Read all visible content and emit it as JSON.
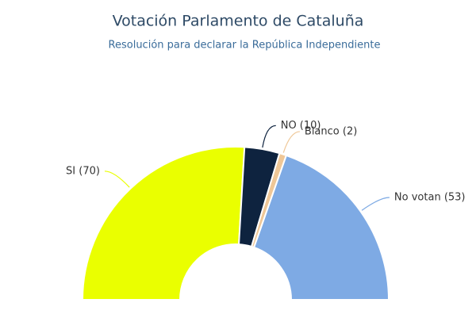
{
  "chart_data": {
    "type": "pie",
    "title": "Votación Parlamento de Cataluña",
    "subtitle": "Resolución para declarar la República Independiente",
    "values": [
      70,
      10,
      2,
      53
    ],
    "value_labels": [
      "SI (70)",
      "NO (10)",
      "Blanco (2)",
      "No votan (53)"
    ],
    "colors": [
      "#eaff00",
      "#0e233f",
      "#efc797",
      "#7eaae4"
    ]
  }
}
